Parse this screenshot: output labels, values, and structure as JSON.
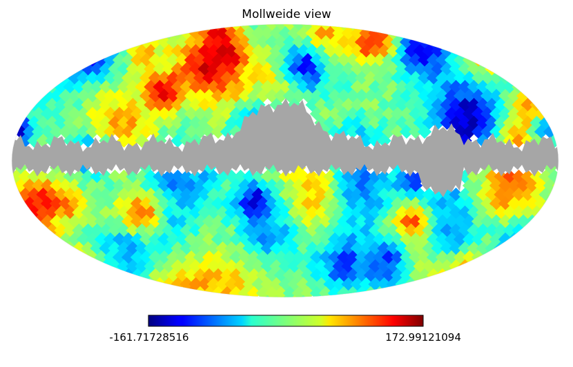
{
  "chart_data": {
    "type": "heatmap",
    "title": "Mollweide view",
    "projection": "mollweide",
    "colormap": "jet",
    "colorbar": {
      "orientation": "horizontal",
      "placement": "bottom",
      "min_label": "-161.71728516",
      "max_label": "172.99121094",
      "min": -161.71728516,
      "max": 172.99121094
    },
    "masked_region": {
      "description": "Galactic plane mask",
      "color": "#a6a6a6"
    },
    "grid": false
  }
}
